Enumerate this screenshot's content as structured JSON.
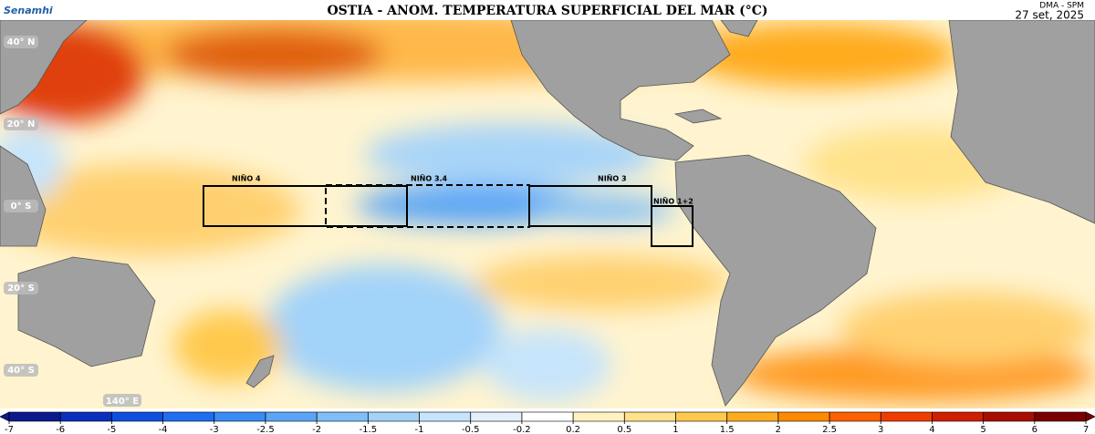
{
  "header": {
    "logo": "Senamhi",
    "title": "OSTIA - ANOM. TEMPERATURA SUPERFICIAL DEL MAR (°C)",
    "source": "DMA - SPM",
    "date": "27 set, 2025"
  },
  "map": {
    "lat_labels": [
      "40° N",
      "20° N",
      "0° S",
      "20° S",
      "40° S"
    ],
    "lon_label": "140° E",
    "regions": [
      "NIÑO 4",
      "NIÑO 3.4",
      "NIÑO 3",
      "NIÑO 1+2"
    ]
  },
  "colorbar": {
    "ticks": [
      -7,
      -6,
      -5,
      -4,
      -3,
      -2.5,
      -2,
      -1.5,
      -1,
      -0.5,
      -0.2,
      0.2,
      0.5,
      1,
      1.5,
      2,
      2.5,
      3,
      4,
      5,
      6,
      7
    ],
    "colors": [
      "#0a1a8c",
      "#0a2fbf",
      "#0f4fe0",
      "#1e6ff0",
      "#3a8cf5",
      "#5aa5f5",
      "#7fbef7",
      "#a2d3f9",
      "#c6e4fb",
      "#e3f1fc",
      "#ffffff",
      "#fff3c0",
      "#ffe28a",
      "#ffc94d",
      "#ffab1e",
      "#ff8a00",
      "#ff6000",
      "#f03c00",
      "#d01e00",
      "#a80d00",
      "#7a0000"
    ]
  }
}
